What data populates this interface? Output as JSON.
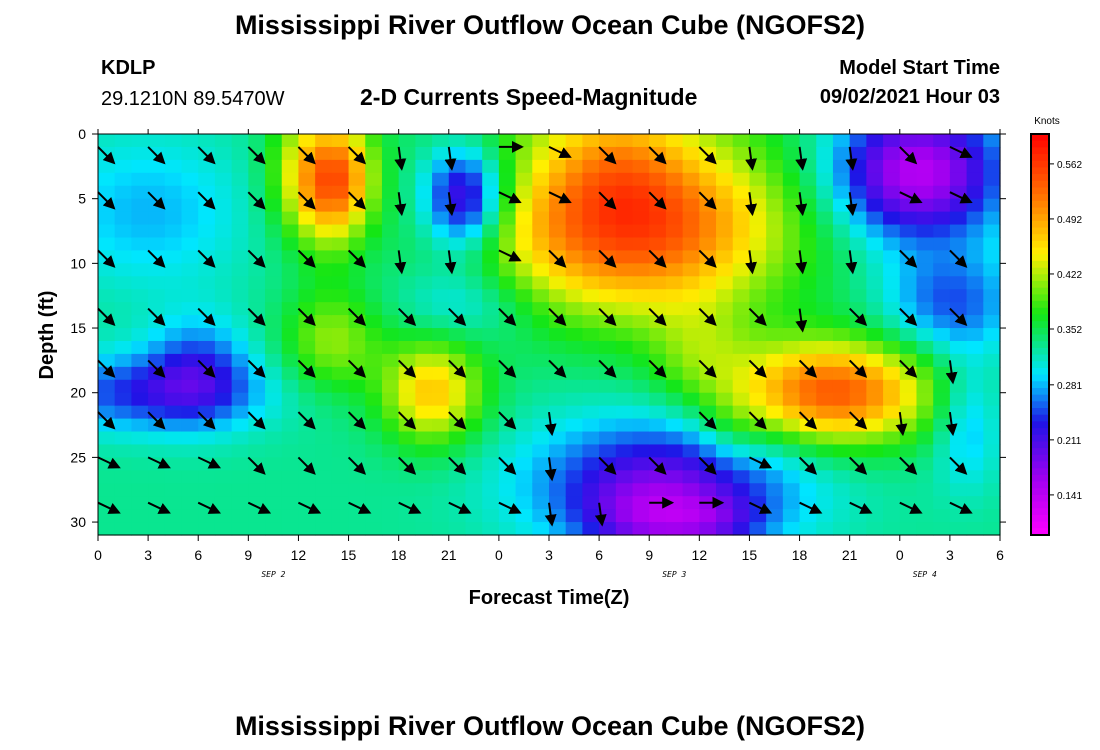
{
  "header": {
    "title": "Mississippi River Outflow Ocean Cube (NGOFS2)",
    "station": "KDLP",
    "coords": "29.1210N  89.5470W",
    "subtitle": "2-D Currents Speed-Magnitude",
    "model_label": "Model Start Time",
    "model_time": "09/02/2021 Hour 03"
  },
  "footer": {
    "title": "Mississippi River Outflow Ocean Cube (NGOFS2)"
  },
  "chart_data": {
    "type": "heatmap",
    "title": "2-D Currents Speed-Magnitude",
    "xlabel": "Forecast Time(Z)",
    "ylabel": "Depth (ft)",
    "x_ticks": [
      "0",
      "3",
      "6",
      "9",
      "12",
      "15",
      "18",
      "21",
      "0",
      "3",
      "6",
      "9",
      "12",
      "15",
      "18",
      "21",
      "0",
      "3",
      "6"
    ],
    "x_date_labels": [
      {
        "label": "SEP 2",
        "at_tick": 3.5
      },
      {
        "label": "SEP 3",
        "at_tick": 11.5
      },
      {
        "label": "SEP 4",
        "at_tick": 16.5
      }
    ],
    "y_ticks": [
      "0",
      "5",
      "10",
      "15",
      "20",
      "25",
      "30"
    ],
    "ylim": [
      0,
      31
    ],
    "colorbar": {
      "unit": "Knots",
      "ticks": [
        "0.562",
        "0.492",
        "0.422",
        "0.352",
        "0.281",
        "0.211",
        "0.141"
      ],
      "range": [
        0.09,
        0.6
      ]
    },
    "blobs": [
      {
        "t": 3,
        "d": 6,
        "w": 6,
        "h": 6,
        "v": -0.05
      },
      {
        "t": 3,
        "d": 20,
        "w": 7,
        "h": 3,
        "v": -0.09
      },
      {
        "t": 6,
        "d": 18,
        "w": 3,
        "h": 4,
        "v": -0.07
      },
      {
        "t": 12,
        "d": 3,
        "w": 2,
        "h": 5,
        "v": 0.09
      },
      {
        "t": 14,
        "d": 4,
        "w": 2,
        "h": 5,
        "v": 0.13
      },
      {
        "t": 15,
        "d": 3,
        "w": 2,
        "h": 4,
        "v": 0.08
      },
      {
        "t": 20,
        "d": 20,
        "w": 3,
        "h": 4,
        "v": 0.14
      },
      {
        "t": 14,
        "d": 16,
        "w": 3,
        "h": 4,
        "v": 0.08
      },
      {
        "t": 22,
        "d": 5,
        "w": 2.5,
        "h": 4,
        "v": -0.17
      },
      {
        "t": 22,
        "d": 13,
        "w": 4,
        "h": 3,
        "v": -0.05
      },
      {
        "t": 32,
        "d": 7,
        "w": 9,
        "h": 7,
        "v": 0.23
      },
      {
        "t": 31,
        "d": 2,
        "w": 4,
        "h": 4,
        "v": 0.05
      },
      {
        "t": 36,
        "d": 17,
        "w": 3,
        "h": 4,
        "v": 0.05
      },
      {
        "t": 34,
        "d": 27,
        "w": 8,
        "h": 5,
        "v": -0.13
      },
      {
        "t": 33,
        "d": 30,
        "w": 4,
        "h": 3,
        "v": -0.08
      },
      {
        "t": 44,
        "d": 20,
        "w": 6,
        "h": 4,
        "v": 0.21
      },
      {
        "t": 38,
        "d": 23,
        "w": 2,
        "h": 3,
        "v": 0.03
      },
      {
        "t": 49,
        "d": 3,
        "w": 5,
        "h": 5,
        "v": -0.19
      },
      {
        "t": 51,
        "d": 13,
        "w": 4,
        "h": 4,
        "v": -0.08
      },
      {
        "t": 52,
        "d": 22,
        "w": 2,
        "h": 5,
        "v": -0.06
      },
      {
        "t": 37,
        "d": 30,
        "w": 3,
        "h": 2,
        "v": -0.05
      },
      {
        "t": 30,
        "d": 0,
        "w": 10,
        "h": 2,
        "v": 0.02
      }
    ],
    "arrows_times": [
      0,
      3,
      6,
      9,
      12,
      15,
      18,
      21,
      24,
      27,
      30,
      33,
      36,
      39,
      42,
      45,
      48,
      51
    ],
    "arrows_depths": [
      1,
      4.5,
      9,
      13.5,
      17.5,
      21.5,
      25,
      28.5
    ],
    "arrows_rows": [
      [
        "se",
        "se",
        "se",
        "se",
        "se",
        "se",
        "s",
        "s",
        "e",
        "ese",
        "se",
        "se",
        "se",
        "s",
        "s",
        "s",
        "se",
        "ese"
      ],
      [
        "se",
        "se",
        "se",
        "se",
        "se",
        "se",
        "s",
        "s",
        "ese",
        "ese",
        "se",
        "se",
        "se",
        "s",
        "s",
        "s",
        "ese",
        "ese"
      ],
      [
        "se",
        "se",
        "se",
        "se",
        "se",
        "se",
        "s",
        "s",
        "ese",
        "se",
        "se",
        "se",
        "se",
        "s",
        "s",
        "s",
        "se",
        "se"
      ],
      [
        "se",
        "se",
        "se",
        "se",
        "se",
        "se",
        "se",
        "se",
        "se",
        "se",
        "se",
        "se",
        "se",
        "se",
        "s",
        "se",
        "se",
        "se"
      ],
      [
        "se",
        "se",
        "se",
        "se",
        "se",
        "se",
        "se",
        "se",
        "se",
        "se",
        "se",
        "se",
        "se",
        "se",
        "se",
        "se",
        "se",
        "s"
      ],
      [
        "se",
        "se",
        "se",
        "se",
        "se",
        "se",
        "se",
        "se",
        "se",
        "s",
        "",
        "",
        "se",
        "se",
        "se",
        "se",
        "s",
        "s"
      ],
      [
        "ese",
        "ese",
        "ese",
        "se",
        "se",
        "se",
        "se",
        "se",
        "se",
        "s",
        "se",
        "se",
        "se",
        "ese",
        "se",
        "se",
        "se",
        "se"
      ],
      [
        "ese",
        "ese",
        "ese",
        "ese",
        "ese",
        "ese",
        "ese",
        "ese",
        "ese",
        "s",
        "s",
        "e",
        "e",
        "ese",
        "ese",
        "ese",
        "ese",
        "ese"
      ]
    ]
  }
}
